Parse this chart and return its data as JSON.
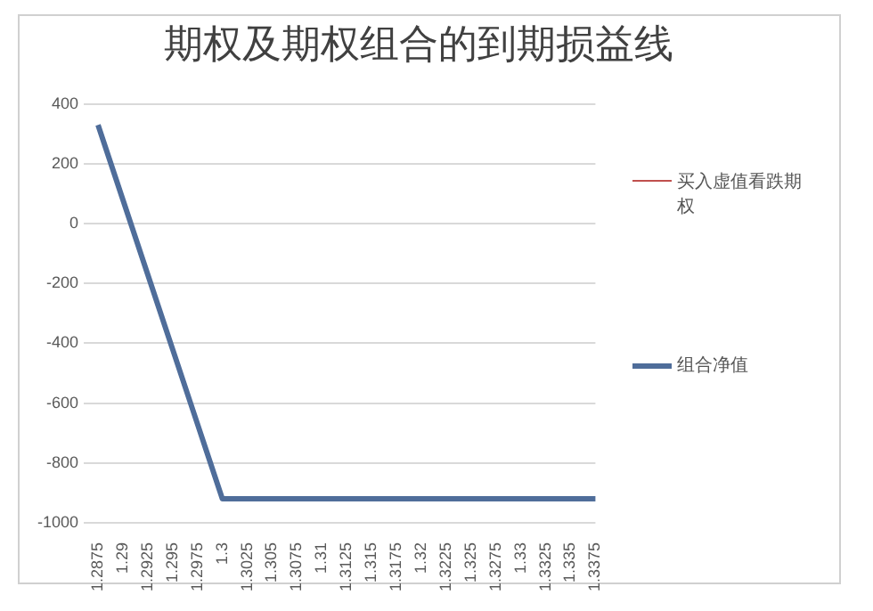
{
  "chart_data": {
    "type": "line",
    "title": "期权及期权组合的到期损益线",
    "categories": [
      "1.2875",
      "1.29",
      "1.2925",
      "1.295",
      "1.2975",
      "1.3",
      "1.3025",
      "1.305",
      "1.3075",
      "1.31",
      "1.3125",
      "1.315",
      "1.3175",
      "1.32",
      "1.3225",
      "1.325",
      "1.3275",
      "1.33",
      "1.3325",
      "1.335",
      "1.3375"
    ],
    "series": [
      {
        "name": "买入虚值看跌期权",
        "color": "#c0504d",
        "values": [
          null,
          null,
          null,
          null,
          null,
          null,
          null,
          null,
          null,
          null,
          null,
          null,
          null,
          null,
          null,
          null,
          null,
          null,
          null,
          null,
          null
        ]
      },
      {
        "name": "组合净值",
        "color": "#4f6d9a",
        "values": [
          330,
          80,
          -170,
          -420,
          -670,
          -920,
          -920,
          -920,
          -920,
          -920,
          -920,
          -920,
          -920,
          -920,
          -920,
          -920,
          -920,
          -920,
          -920,
          -920,
          -920
        ]
      }
    ],
    "ylim": [
      -1000,
      400
    ],
    "yticks": [
      -1000,
      -800,
      -600,
      -400,
      -200,
      0,
      200,
      400
    ],
    "grid": "y",
    "legend": "right",
    "marker": "none",
    "line_style": "solid"
  }
}
